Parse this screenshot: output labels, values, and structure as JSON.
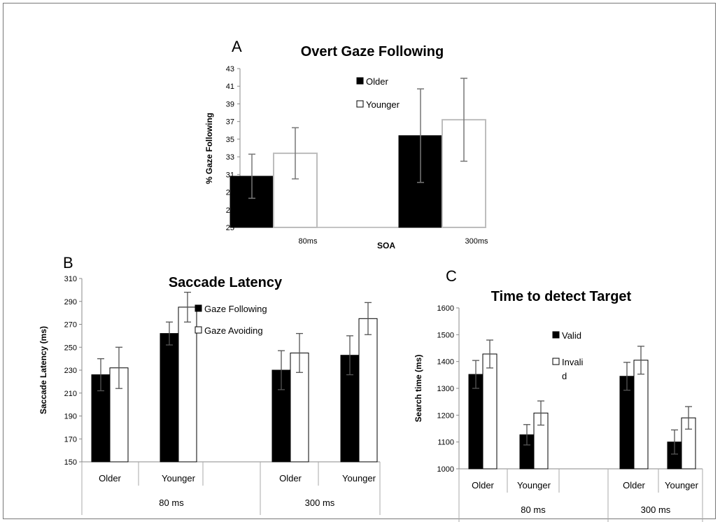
{
  "chart_data": [
    {
      "panel_letter": "A",
      "type": "bar",
      "title": "Overt Gaze Following",
      "ylabel": "% Gaze Following",
      "xlabel": "SOA",
      "ylim": [
        25,
        43
      ],
      "yticks": [
        25,
        27,
        29,
        31,
        33,
        35,
        37,
        39,
        41,
        43
      ],
      "categories": [
        "80ms",
        "300ms"
      ],
      "series": [
        {
          "name": "Older",
          "color": "#000000",
          "values": [
            30.8,
            35.4
          ],
          "errors": [
            2.5,
            5.3
          ]
        },
        {
          "name": "Younger",
          "color": "#ffffff",
          "values": [
            33.4,
            37.2
          ],
          "errors": [
            2.9,
            4.7
          ]
        }
      ],
      "legend": "top-left",
      "grid": false
    },
    {
      "panel_letter": "B",
      "type": "bar",
      "title": "Saccade Latency",
      "ylabel": "Saccade Latency (ms)",
      "ylim": [
        150,
        310
      ],
      "yticks": [
        150,
        170,
        190,
        210,
        230,
        250,
        270,
        290,
        310
      ],
      "groups": [
        "80 ms",
        "300 ms"
      ],
      "categories": [
        "Older",
        "Younger"
      ],
      "series": [
        {
          "name": "Gaze Following",
          "color": "#000000",
          "values": [
            [
              226,
              262
            ],
            [
              230,
              243
            ]
          ],
          "errors": [
            [
              14,
              10
            ],
            [
              17,
              17
            ]
          ]
        },
        {
          "name": "Gaze Avoiding",
          "color": "#ffffff",
          "values": [
            [
              232,
              285
            ],
            [
              245,
              275
            ]
          ],
          "errors": [
            [
              18,
              13
            ],
            [
              17,
              14
            ]
          ]
        }
      ],
      "legend": "top-center",
      "grid": false
    },
    {
      "panel_letter": "C",
      "type": "bar",
      "title": "Time to detect Target",
      "ylabel": "Search time (ms)",
      "ylim": [
        1000,
        1600
      ],
      "yticks": [
        1000,
        1100,
        1200,
        1300,
        1400,
        1500,
        1600
      ],
      "groups": [
        "80 ms",
        "300 ms"
      ],
      "categories": [
        "Older",
        "Younger"
      ],
      "series": [
        {
          "name": "Valid",
          "color": "#000000",
          "values": [
            [
              1352,
              1127
            ],
            [
              1345,
              1100
            ]
          ],
          "errors": [
            [
              52,
              38
            ],
            [
              52,
              45
            ]
          ]
        },
        {
          "name": "Invalid",
          "color": "#ffffff",
          "legend_lines": [
            "Invali",
            "d"
          ],
          "values": [
            [
              1428,
              1208
            ],
            [
              1405,
              1190
            ]
          ],
          "errors": [
            [
              52,
              45
            ],
            [
              52,
              42
            ]
          ]
        }
      ],
      "legend": "top-center",
      "grid": false
    }
  ]
}
